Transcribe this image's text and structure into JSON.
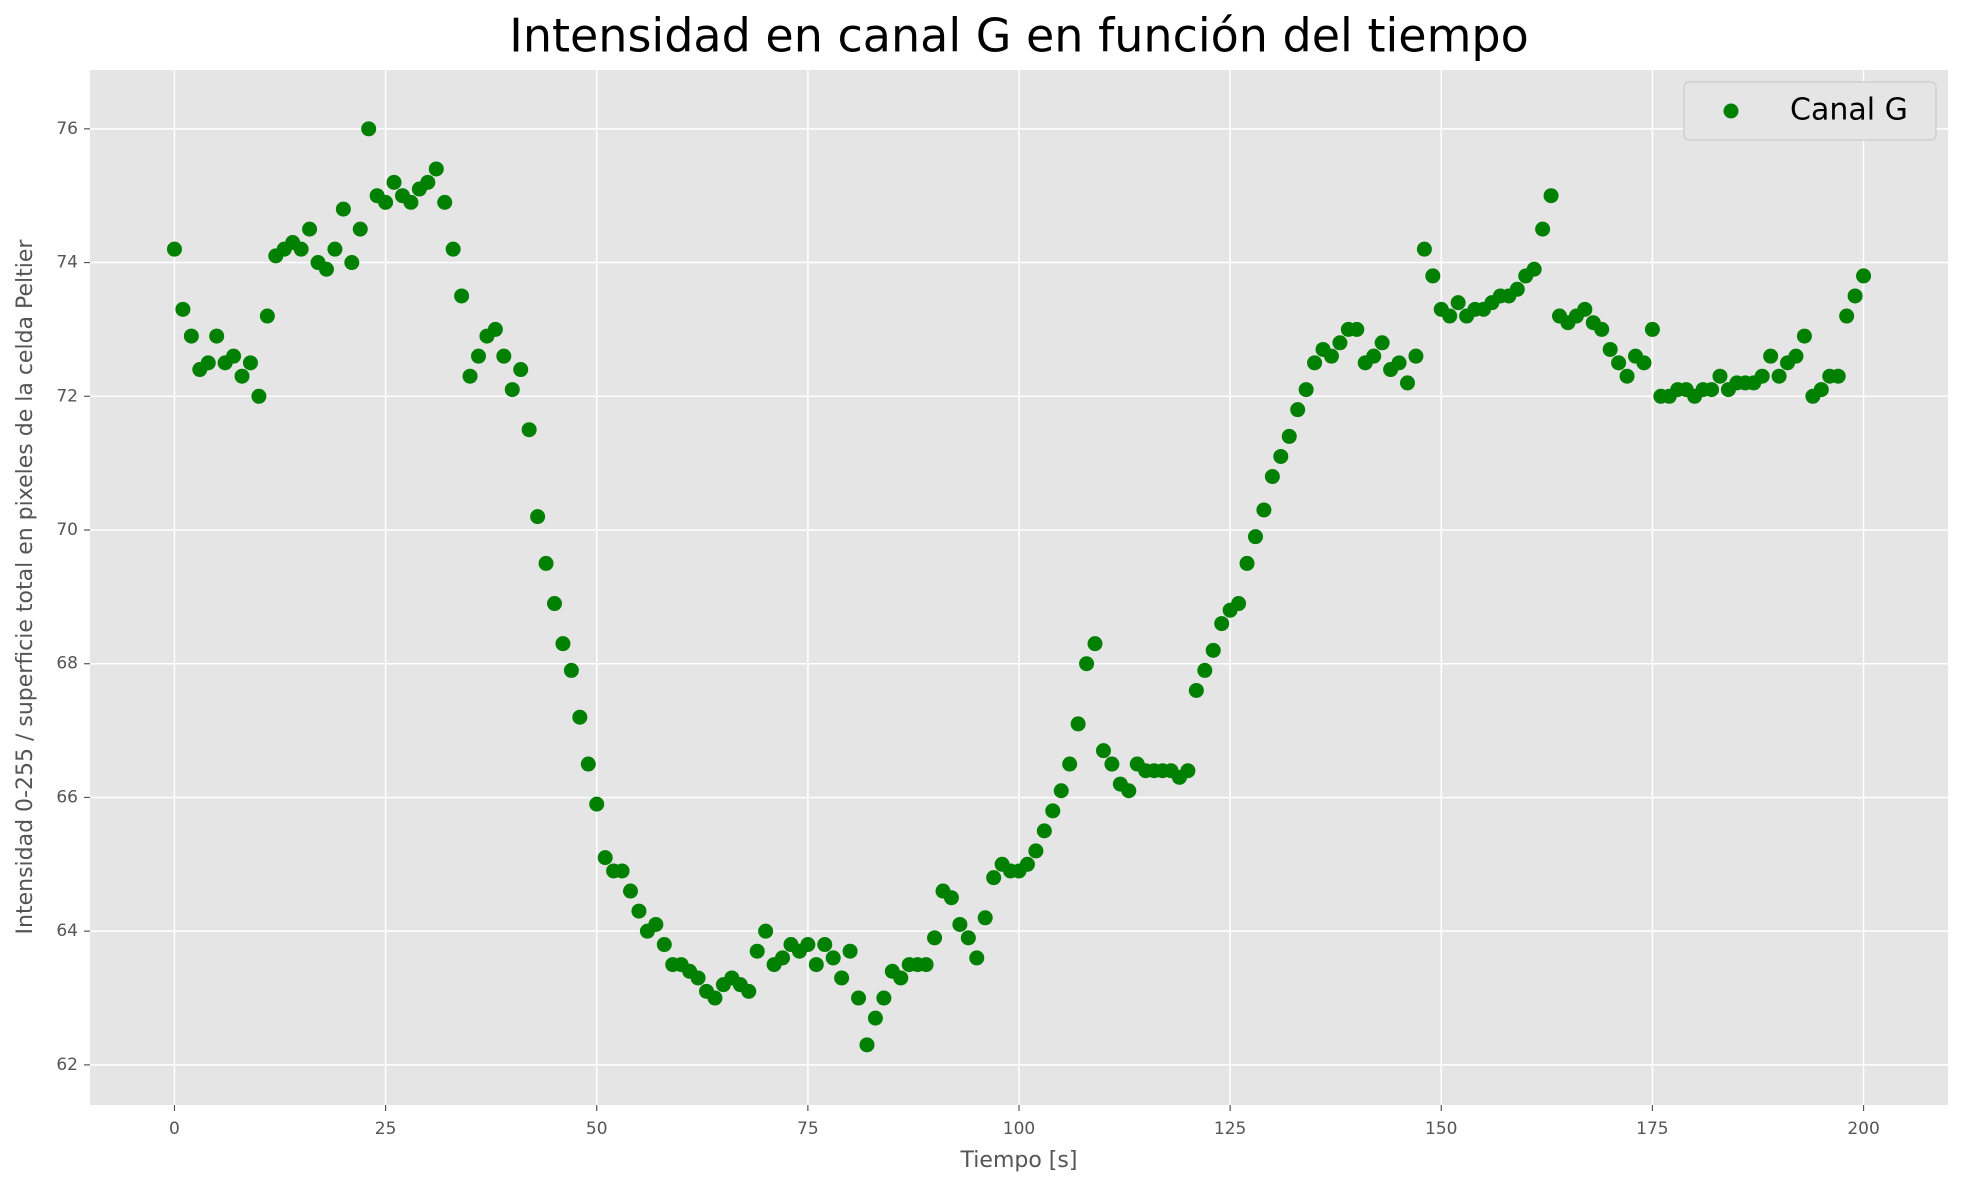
{
  "chart_data": {
    "type": "scatter",
    "title": "Intensidad en canal G en función del tiempo",
    "x_label": "Tiempo [s]",
    "y_label": "Intensidad 0-255 / superficie total en pixeles de la celda Peltier",
    "xlim": [
      -10,
      210
    ],
    "ylim": [
      61.4,
      76.88
    ],
    "xticks": [
      0,
      25,
      50,
      75,
      100,
      125,
      150,
      175,
      200
    ],
    "yticks": [
      62,
      64,
      66,
      68,
      70,
      72,
      74,
      76
    ],
    "grid": true,
    "legend": "upper right",
    "x": [
      0,
      1,
      2,
      3,
      4,
      5,
      6,
      7,
      8,
      9,
      10,
      11,
      12,
      13,
      14,
      15,
      16,
      17,
      18,
      19,
      20,
      21,
      22,
      23,
      24,
      25,
      26,
      27,
      28,
      29,
      30,
      31,
      32,
      33,
      34,
      35,
      36,
      37,
      38,
      39,
      40,
      41,
      42,
      43,
      44,
      45,
      46,
      47,
      48,
      49,
      50,
      51,
      52,
      53,
      54,
      55,
      56,
      57,
      58,
      59,
      60,
      61,
      62,
      63,
      64,
      65,
      66,
      67,
      68,
      69,
      70,
      71,
      72,
      73,
      74,
      75,
      76,
      77,
      78,
      79,
      80,
      81,
      82,
      83,
      84,
      85,
      86,
      87,
      88,
      89,
      90,
      91,
      92,
      93,
      94,
      95,
      96,
      97,
      98,
      99,
      100,
      101,
      102,
      103,
      104,
      105,
      106,
      107,
      108,
      109,
      110,
      111,
      112,
      113,
      114,
      115,
      116,
      117,
      118,
      119,
      120,
      121,
      122,
      123,
      124,
      125,
      126,
      127,
      128,
      129,
      130,
      131,
      132,
      133,
      134,
      135,
      136,
      137,
      138,
      139,
      140,
      141,
      142,
      143,
      144,
      145,
      146,
      147,
      148,
      149,
      150,
      151,
      152,
      153,
      154,
      155,
      156,
      157,
      158,
      159,
      160,
      161,
      162,
      163,
      164,
      165,
      166,
      167,
      168,
      169,
      170,
      171,
      172,
      173,
      174,
      175,
      176,
      177,
      178,
      179,
      180,
      181,
      182,
      183,
      184,
      185,
      186,
      187,
      188,
      189,
      190,
      191,
      192,
      193,
      194,
      195,
      196,
      197,
      198,
      199,
      200
    ],
    "series": [
      {
        "name": "Canal G",
        "color": "#008000",
        "values": [
          74.2,
          73.3,
          72.9,
          72.4,
          72.5,
          72.9,
          72.5,
          72.6,
          72.3,
          72.5,
          72.0,
          73.2,
          74.1,
          74.2,
          74.3,
          74.2,
          74.5,
          74.0,
          73.9,
          74.2,
          74.8,
          74.0,
          74.5,
          76.0,
          75.0,
          74.9,
          75.2,
          75.0,
          74.9,
          75.1,
          75.2,
          75.4,
          74.9,
          74.2,
          73.5,
          72.3,
          72.6,
          72.9,
          73.0,
          72.6,
          72.1,
          72.4,
          71.5,
          70.2,
          69.5,
          68.9,
          68.3,
          67.9,
          67.2,
          66.5,
          65.9,
          65.1,
          64.9,
          64.9,
          64.6,
          64.3,
          64.0,
          64.1,
          63.8,
          63.5,
          63.5,
          63.4,
          63.3,
          63.1,
          63.0,
          63.2,
          63.3,
          63.2,
          63.1,
          63.7,
          64.0,
          63.5,
          63.6,
          63.8,
          63.7,
          63.8,
          63.5,
          63.8,
          63.6,
          63.3,
          63.7,
          63.0,
          62.3,
          62.7,
          63.0,
          63.4,
          63.3,
          63.5,
          63.5,
          63.5,
          63.9,
          64.6,
          64.5,
          64.1,
          63.9,
          63.6,
          64.2,
          64.8,
          65.0,
          64.9,
          64.9,
          65.0,
          65.2,
          65.5,
          65.8,
          66.1,
          66.5,
          67.1,
          68.0,
          68.3,
          66.7,
          66.5,
          66.2,
          66.1,
          66.5,
          66.4,
          66.4,
          66.4,
          66.4,
          66.3,
          66.4,
          67.6,
          67.9,
          68.2,
          68.6,
          68.8,
          68.9,
          69.5,
          69.9,
          70.3,
          70.8,
          71.1,
          71.4,
          71.8,
          72.1,
          72.5,
          72.7,
          72.6,
          72.8,
          73.0,
          73.0,
          72.5,
          72.6,
          72.8,
          72.4,
          72.5,
          72.2,
          72.6,
          74.2,
          73.8,
          73.3,
          73.2,
          73.4,
          73.2,
          73.3,
          73.3,
          73.4,
          73.5,
          73.5,
          73.6,
          73.8,
          73.9,
          74.5,
          75.0,
          73.2,
          73.1,
          73.2,
          73.3,
          73.1,
          73.0,
          72.7,
          72.5,
          72.3,
          72.6,
          72.5,
          73.0,
          72.0,
          72.0,
          72.1,
          72.1,
          72.0,
          72.1,
          72.1,
          72.3,
          72.1,
          72.2,
          72.2,
          72.2,
          72.3,
          72.6,
          72.3,
          72.5,
          72.6,
          72.9,
          72.0,
          72.1,
          72.3,
          72.3,
          73.2,
          73.5,
          73.8
        ]
      }
    ]
  }
}
